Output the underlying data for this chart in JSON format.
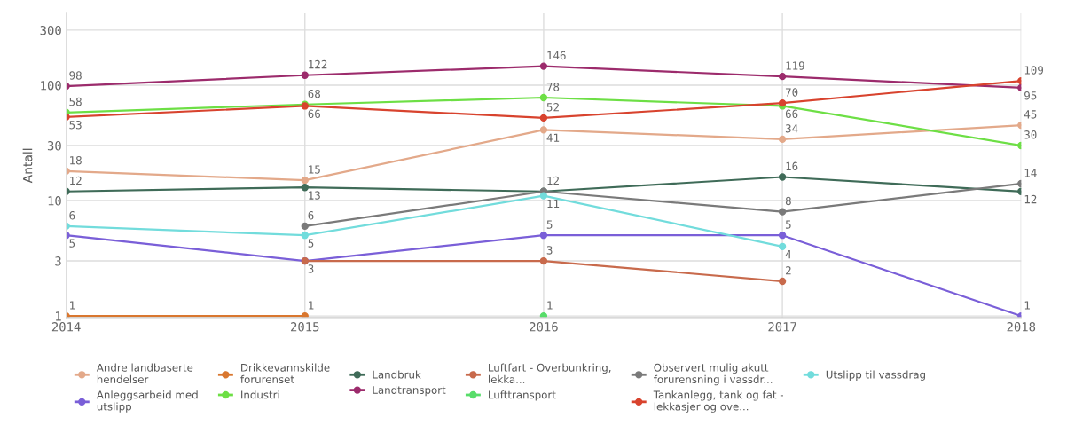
{
  "chart_data": {
    "type": "line",
    "ylabel": "Antall",
    "log": "y",
    "x": [
      2014,
      2015,
      2016,
      2017,
      2018
    ],
    "xlim": [
      2014,
      2018
    ],
    "xticks": [
      2014,
      2015,
      2016,
      2017,
      2018
    ],
    "ylim": [
      0.97,
      420
    ],
    "yticks": [
      1,
      3,
      10,
      30,
      100,
      300
    ],
    "grid": true,
    "legend": "bottom",
    "marker": "circle",
    "line_style": "solid",
    "data_labels": true,
    "series": [
      {
        "name": "Andre landbaserte\nhendelser",
        "color": "#e3a98a",
        "values": [
          18,
          15,
          41,
          34,
          45
        ]
      },
      {
        "name": "Anleggsarbeid med\nutslipp",
        "color": "#7a5fd8",
        "values": [
          5,
          3,
          5,
          5,
          1
        ]
      },
      {
        "name": "Drikkevannskilde\nforurenset",
        "color": "#d9772f",
        "values": [
          1,
          1,
          null,
          null,
          null
        ]
      },
      {
        "name": "Industri",
        "color": "#6ddf45",
        "values": [
          58,
          68,
          78,
          66,
          30
        ]
      },
      {
        "name": "Landbruk",
        "color": "#3f6b58",
        "values": [
          12,
          13,
          12,
          16,
          12
        ]
      },
      {
        "name": "Landtransport",
        "color": "#9c2b6c",
        "values": [
          98,
          122,
          146,
          119,
          95
        ]
      },
      {
        "name": "Luftfart - Overbunkring,\nlekka...",
        "color": "#c86a4c",
        "values": [
          null,
          3,
          3,
          2,
          null
        ],
        "value_labels": [
          null,
          null,
          "3",
          "2",
          null
        ]
      },
      {
        "name": "Lufttransport",
        "color": "#58dd6a",
        "values": [
          null,
          null,
          1,
          null,
          null
        ]
      },
      {
        "name": "Observert mulig akutt\nforurensning i vassdr...",
        "color": "#7a7a7a",
        "values": [
          null,
          6,
          12,
          8,
          14
        ],
        "value_labels": [
          null,
          "6",
          null,
          "8",
          "14"
        ]
      },
      {
        "name": "Tankanlegg, tank og fat -\nlekkasjer og ove...",
        "color": "#d8432e",
        "values": [
          53,
          66,
          52,
          70,
          109
        ]
      },
      {
        "name": "Utslipp til vassdrag",
        "color": "#72dcdc",
        "values": [
          6,
          5,
          11,
          4,
          null
        ]
      }
    ]
  }
}
